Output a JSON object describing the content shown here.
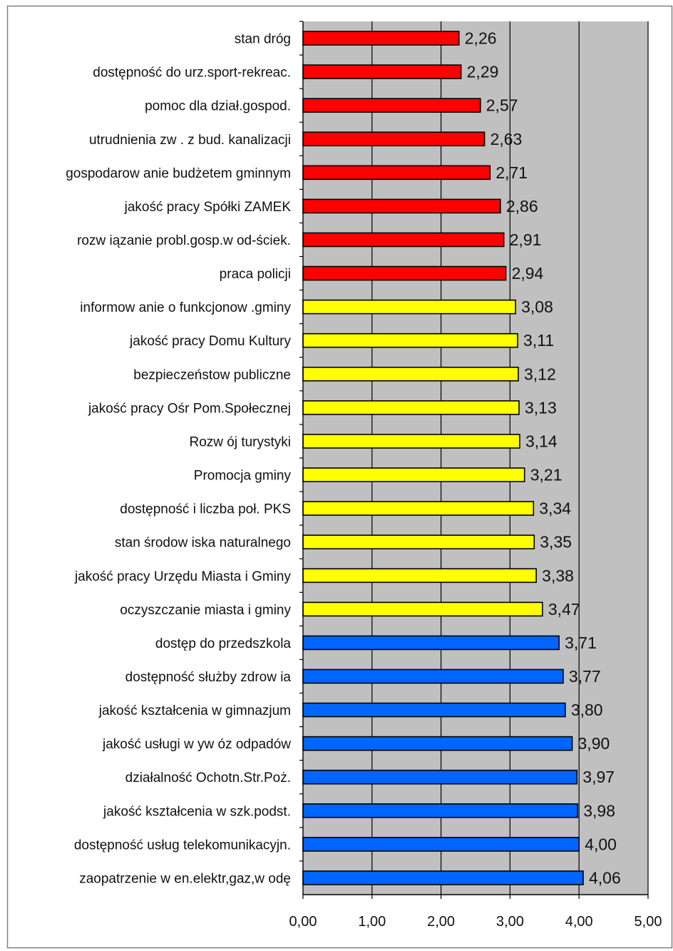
{
  "chart_data": {
    "type": "bar",
    "orientation": "horizontal",
    "title": "",
    "xlabel": "",
    "ylabel": "",
    "xlim": [
      0,
      5
    ],
    "xticks": [
      0,
      1,
      2,
      3,
      4,
      5
    ],
    "xtick_labels": [
      "0,00",
      "1,00",
      "2,00",
      "3,00",
      "4,00",
      "5,00"
    ],
    "grid": "vertical",
    "legend": "none",
    "colors": {
      "plot_background": "#c0c0c0",
      "bar_outline": "#000000",
      "gridline": "#000000",
      "frame": "#808080"
    },
    "categories": [
      "stan dróg",
      "dostępność do urz.sport-rekreac.",
      "pomoc dla dział.gospod.",
      "utrudnienia zw . z bud. kanalizacji",
      "gospodarow anie budżetem gminnym",
      "jakość pracy Spółki ZAMEK",
      "rozw iązanie probl.gosp.w od-ściek.",
      "praca policji",
      "informow anie o funkcjonow .gminy",
      "jakość pracy Domu Kultury",
      "bezpieczeństow publiczne",
      "jakość pracy Ośr Pom.Społecznej",
      "Rozw ój turystyki",
      "Promocja gminy",
      "dostępność i liczba poł. PKS",
      "stan środow iska naturalnego",
      "jakość pracy Urzędu Miasta i Gminy",
      "oczyszczanie miasta i gminy",
      "dostęp do przedszkola",
      "dostępność służby zdrow ia",
      "jakość kształcenia w gimnazjum",
      "jakość usługi w yw óz odpadów",
      "działalność Ochotn.Str.Poż.",
      "jakość kształcenia w szk.podst.",
      "dostępność usług telekomunikacyjn.",
      "zaopatrzenie w en.elektr,gaz,w odę"
    ],
    "values": [
      2.26,
      2.29,
      2.57,
      2.63,
      2.71,
      2.86,
      2.91,
      2.94,
      3.08,
      3.11,
      3.12,
      3.13,
      3.14,
      3.21,
      3.34,
      3.35,
      3.38,
      3.47,
      3.71,
      3.77,
      3.8,
      3.9,
      3.97,
      3.98,
      4.0,
      4.06
    ],
    "value_labels": [
      "2,26",
      "2,29",
      "2,57",
      "2,63",
      "2,71",
      "2,86",
      "2,91",
      "2,94",
      "3,08",
      "3,11",
      "3,12",
      "3,13",
      "3,14",
      "3,21",
      "3,34",
      "3,35",
      "3,38",
      "3,47",
      "3,71",
      "3,77",
      "3,80",
      "3,90",
      "3,97",
      "3,98",
      "4,00",
      "4,06"
    ],
    "bar_colors": [
      "#ff0000",
      "#ff0000",
      "#ff0000",
      "#ff0000",
      "#ff0000",
      "#ff0000",
      "#ff0000",
      "#ff0000",
      "#ffff00",
      "#ffff00",
      "#ffff00",
      "#ffff00",
      "#ffff00",
      "#ffff00",
      "#ffff00",
      "#ffff00",
      "#ffff00",
      "#ffff00",
      "#0066ff",
      "#0066ff",
      "#0066ff",
      "#0066ff",
      "#0066ff",
      "#0066ff",
      "#0066ff",
      "#0066ff"
    ]
  }
}
